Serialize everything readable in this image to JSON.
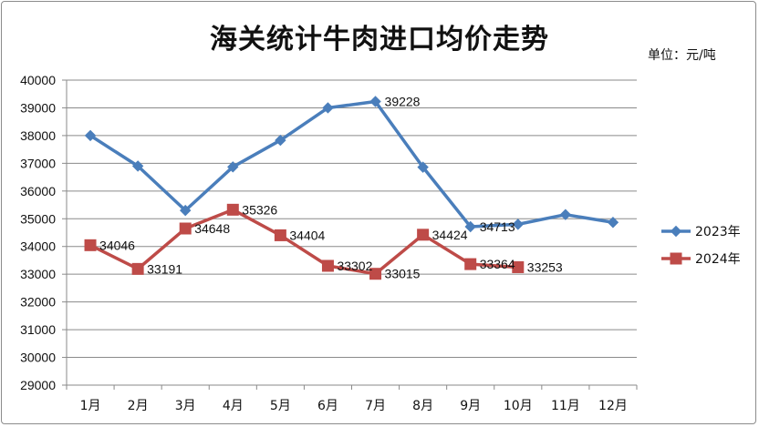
{
  "chart_data": {
    "type": "line",
    "title": "海关统计牛肉进口均价走势",
    "unit_label": "单位：元/吨",
    "categories": [
      "1月",
      "2月",
      "3月",
      "4月",
      "5月",
      "6月",
      "7月",
      "8月",
      "9月",
      "10月",
      "11月",
      "12月"
    ],
    "ylim": [
      29000,
      40000
    ],
    "yticks": [
      "29000",
      "30000",
      "31000",
      "32000",
      "33000",
      "34000",
      "35000",
      "36000",
      "37000",
      "38000",
      "39000",
      "40000"
    ],
    "grid": true,
    "legend_position": "right",
    "series": [
      {
        "name": "2023年",
        "color": "#4a7ebb",
        "marker": "diamond",
        "values": [
          38000,
          36900,
          35300,
          36870,
          37830,
          39000,
          39228,
          36860,
          34713,
          34800,
          35150,
          34870
        ],
        "labels": [
          "",
          "",
          "",
          "",
          "",
          "",
          "39228",
          "",
          "34713",
          "",
          "",
          ""
        ]
      },
      {
        "name": "2024年",
        "color": "#be4b48",
        "marker": "square",
        "values": [
          34046,
          33191,
          34648,
          35326,
          34404,
          33302,
          33015,
          34424,
          33364,
          33253,
          null,
          null
        ],
        "labels": [
          "34046",
          "33191",
          "34648",
          "35326",
          "34404",
          "33302",
          "33015",
          "34424",
          "33364",
          "33253",
          "",
          ""
        ]
      }
    ]
  }
}
